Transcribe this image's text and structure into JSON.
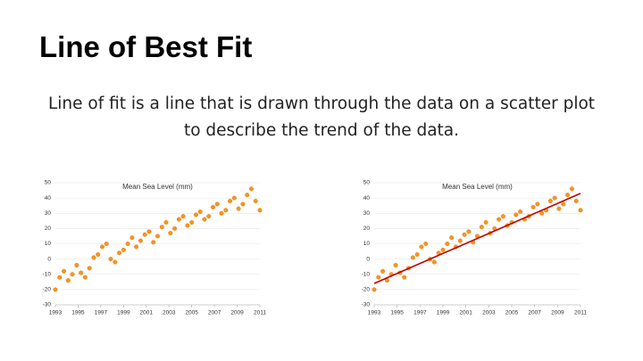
{
  "header": {
    "title": "Line of Best Fit"
  },
  "body": {
    "text": "Line of fit is a line that is drawn through the data on a scatter plot to describe the trend of the data."
  },
  "chart_data": [
    {
      "type": "scatter",
      "title": "Mean Sea Level (mm)",
      "color": "#f7941d",
      "grid": true,
      "xlim": [
        1993,
        2011
      ],
      "xticks": [
        1993,
        1995,
        1997,
        1999,
        2001,
        2003,
        2005,
        2007,
        2009,
        2011
      ],
      "ylim": [
        -30,
        50
      ],
      "yticks": [
        -30,
        -20,
        -10,
        0,
        10,
        20,
        30,
        40,
        50
      ],
      "x": [
        1993,
        1993.375,
        1993.75,
        1994.125,
        1994.5,
        1994.875,
        1995.25,
        1995.625,
        1996,
        1996.375,
        1996.75,
        1997.125,
        1997.5,
        1997.875,
        1998.25,
        1998.625,
        1999,
        1999.375,
        1999.75,
        2000.125,
        2000.5,
        2000.875,
        2001.25,
        2001.625,
        2002,
        2002.375,
        2002.75,
        2003.125,
        2003.5,
        2003.875,
        2004.25,
        2004.625,
        2005,
        2005.375,
        2005.75,
        2006.125,
        2006.5,
        2006.875,
        2007.25,
        2007.625,
        2008,
        2008.375,
        2008.75,
        2009.125,
        2009.5,
        2009.875,
        2010.25,
        2010.625,
        2011
      ],
      "y": [
        -20,
        -12,
        -8,
        -14,
        -10,
        -4,
        -9,
        -12,
        -6,
        1,
        3,
        8,
        10,
        0,
        -2,
        4,
        6,
        10,
        14,
        8,
        12,
        16,
        18,
        11,
        15,
        21,
        24,
        17,
        20,
        26,
        28,
        22,
        24,
        29,
        31,
        26,
        28,
        34,
        36,
        30,
        32,
        38,
        40,
        33,
        36,
        42,
        46,
        38,
        32
      ]
    },
    {
      "type": "scatter",
      "title": "Mean Sea Level (mm)",
      "color": "#f7941d",
      "grid": true,
      "xlim": [
        1993,
        2011
      ],
      "xticks": [
        1993,
        1995,
        1997,
        1999,
        2001,
        2003,
        2005,
        2007,
        2009,
        2011
      ],
      "ylim": [
        -30,
        50
      ],
      "yticks": [
        -30,
        -20,
        -10,
        0,
        10,
        20,
        30,
        40,
        50
      ],
      "x": [
        1993,
        1993.375,
        1993.75,
        1994.125,
        1994.5,
        1994.875,
        1995.25,
        1995.625,
        1996,
        1996.375,
        1996.75,
        1997.125,
        1997.5,
        1997.875,
        1998.25,
        1998.625,
        1999,
        1999.375,
        1999.75,
        2000.125,
        2000.5,
        2000.875,
        2001.25,
        2001.625,
        2002,
        2002.375,
        2002.75,
        2003.125,
        2003.5,
        2003.875,
        2004.25,
        2004.625,
        2005,
        2005.375,
        2005.75,
        2006.125,
        2006.5,
        2006.875,
        2007.25,
        2007.625,
        2008,
        2008.375,
        2008.75,
        2009.125,
        2009.5,
        2009.875,
        2010.25,
        2010.625,
        2011
      ],
      "y": [
        -20,
        -12,
        -8,
        -14,
        -10,
        -4,
        -9,
        -12,
        -6,
        1,
        3,
        8,
        10,
        0,
        -2,
        4,
        6,
        10,
        14,
        8,
        12,
        16,
        18,
        11,
        15,
        21,
        24,
        17,
        20,
        26,
        28,
        22,
        24,
        29,
        31,
        26,
        28,
        34,
        36,
        30,
        32,
        38,
        40,
        33,
        36,
        42,
        46,
        38,
        32
      ],
      "fit_line": {
        "color": "#c00000",
        "x": [
          1993,
          2011
        ],
        "y": [
          -16,
          43
        ]
      }
    }
  ]
}
